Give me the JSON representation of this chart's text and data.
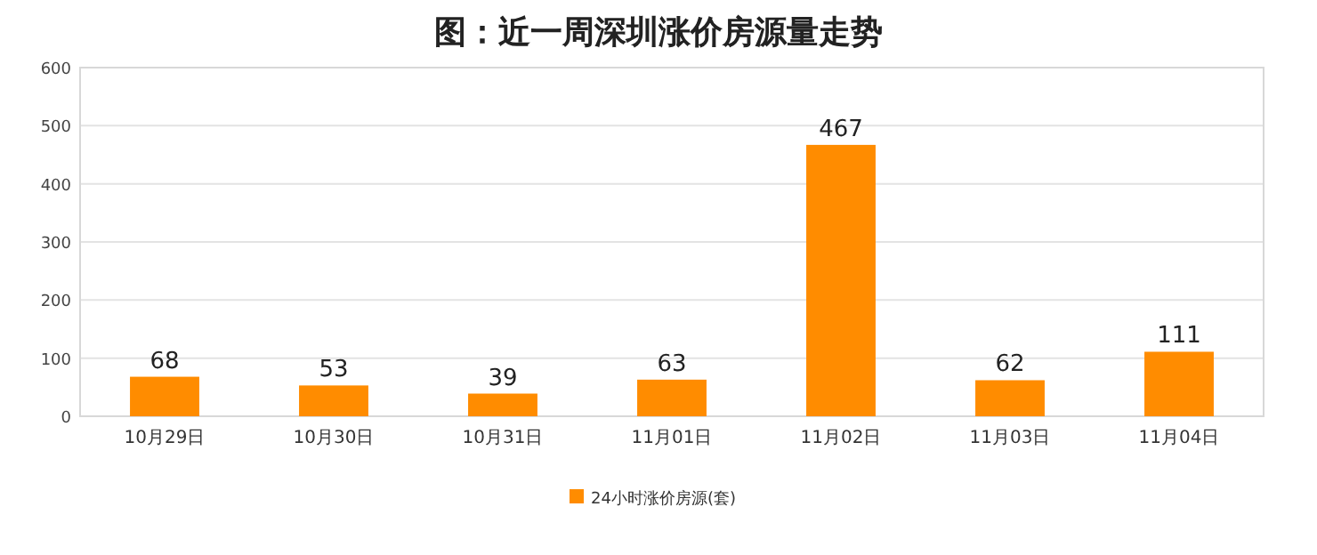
{
  "chart_data": {
    "type": "bar",
    "title": "图：近一周深圳涨价房源量走势",
    "categories": [
      "10月29日",
      "10月30日",
      "10月31日",
      "11月01日",
      "11月02日",
      "11月03日",
      "11月04日"
    ],
    "series": [
      {
        "name": "24小时涨价房源(套)",
        "color": "#ff8c00",
        "values": [
          68,
          53,
          39,
          63,
          467,
          62,
          111
        ]
      }
    ],
    "ylim": [
      0,
      600
    ],
    "yticks": [
      0,
      100,
      200,
      300,
      400,
      500,
      600
    ],
    "grid": "y",
    "legend": "bottom",
    "data_labels": true
  }
}
